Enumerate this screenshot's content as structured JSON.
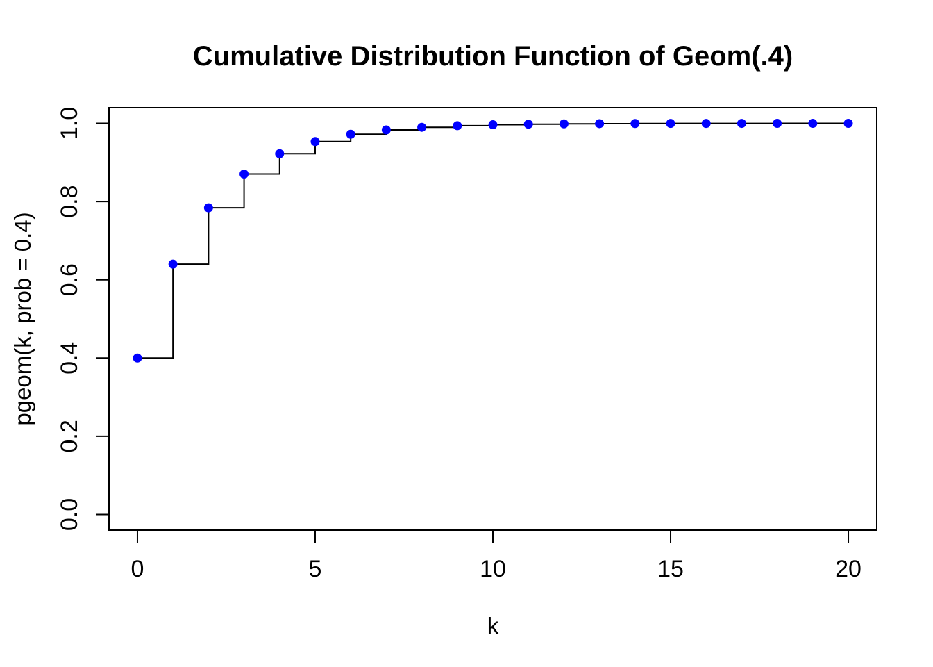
{
  "chart_data": {
    "type": "line",
    "style": "step-post",
    "title": "Cumulative Distribution Function of Geom(.4)",
    "xlabel": "k",
    "ylabel": "pgeom(k, prob = 0.4)",
    "x": [
      0,
      1,
      2,
      3,
      4,
      5,
      6,
      7,
      8,
      9,
      10,
      11,
      12,
      13,
      14,
      15,
      16,
      17,
      18,
      19,
      20
    ],
    "y": [
      0.4,
      0.64,
      0.784,
      0.8704,
      0.92224,
      0.953344,
      0.9720064,
      0.9832038,
      0.9899223,
      0.9939534,
      0.996372,
      0.9978232,
      0.9986939,
      0.9992164,
      0.9995298,
      0.9997179,
      0.9998307,
      0.9998984,
      0.9999391,
      0.9999634,
      0.9999781
    ],
    "xticks": {
      "values": [
        0,
        5,
        10,
        15,
        20
      ],
      "labels": [
        "0",
        "5",
        "10",
        "15",
        "20"
      ]
    },
    "yticks": {
      "values": [
        0,
        0.2,
        0.4,
        0.6,
        0.8,
        1.0
      ],
      "labels": [
        "0.0",
        "0.2",
        "0.4",
        "0.6",
        "0.8",
        "1.0"
      ]
    },
    "xlim": [
      -0.8,
      20.8
    ],
    "ylim": [
      -0.04,
      1.04
    ],
    "point_color": "#0000FF",
    "line_color": "#000000",
    "axis_color": "#000000",
    "background": "#FFFFFF",
    "grid": false
  }
}
